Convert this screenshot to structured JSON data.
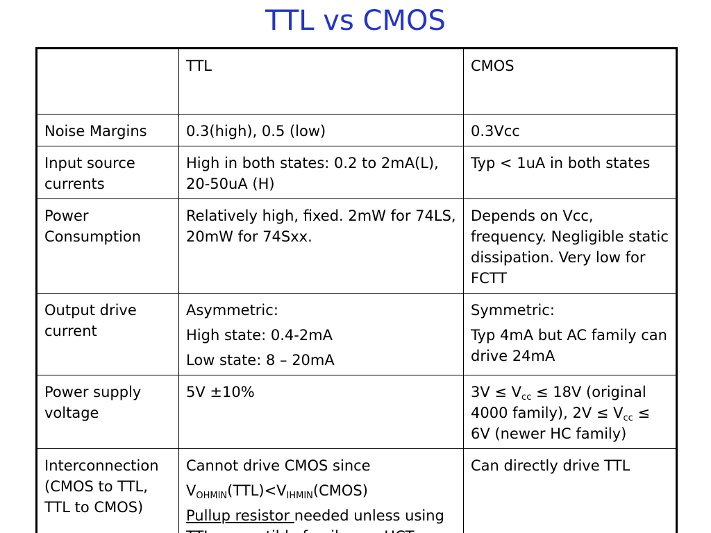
{
  "title": "TTL vs CMOS",
  "table": {
    "header": [
      "",
      "TTL",
      "CMOS"
    ],
    "rows": [
      {
        "label": "Noise Margins",
        "ttl": "0.3(high), 0.5 (low)",
        "cmos": "0.3Vcc"
      },
      {
        "label": "Input source currents",
        "ttl": "High in both states: 0.2 to 2mA(L), 20-50uA (H)",
        "cmos": "Typ < 1uA in both states"
      },
      {
        "label": "Power Consumption",
        "ttl": "Relatively high, fixed. 2mW for 74LS, 20mW for 74Sxx.",
        "cmos": "Depends on Vcc, frequency. Negligible static dissipation.  Very low for FCTT"
      },
      {
        "label": "Output drive current",
        "ttl": [
          "Asymmetric:",
          "High state: 0.4-2mA",
          "Low state: 8 – 20mA"
        ],
        "cmos": [
          "Symmetric:",
          "Typ 4mA but AC family can drive 24mA"
        ]
      },
      {
        "label": "Power supply voltage",
        "ttl": "5V ±10%",
        "cmos": {
          "a": "3V ≤ V",
          "a_sub": "cc",
          "b": "  ≤ 18V (original 4000 family), 2V ≤ V",
          "b_sub": "cc",
          "c": " ≤ 6V (newer HC family)"
        }
      },
      {
        "label": "Interconnection (CMOS to TTL, TTL to CMOS)",
        "ttl": {
          "line1": "Cannot drive CMOS since",
          "v1": "V",
          "v1_sub": "OHMIN",
          "mid": "(TTL)<V",
          "v2_sub": "IHMIN",
          "end": "(CMOS)",
          "underlined": "Pullup resistor ",
          "rest": " needed unless using TTL compatible family e.g. HCT"
        },
        "cmos": "Can directly drive TTL"
      }
    ]
  }
}
